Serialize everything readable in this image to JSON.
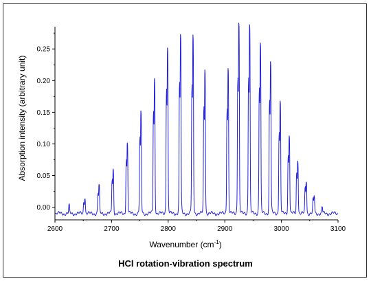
{
  "chart_data": {
    "type": "line",
    "title": "HCl rotation-vibration spectrum",
    "xlabel": "Wavenumber (cm",
    "xlabel_sup": "-1",
    "xlabel_close": ")",
    "ylabel": "Absorption intensity (arbitrary unit)",
    "xlim": [
      2600,
      3100
    ],
    "ylim": [
      -0.02,
      0.285
    ],
    "x_ticks": [
      2600,
      2700,
      2800,
      2900,
      3000,
      3100
    ],
    "x_tick_labels": [
      "2600",
      "2700",
      "2800",
      "2900",
      "3000",
      "3100"
    ],
    "y_ticks": [
      0.0,
      0.05,
      0.1,
      0.15,
      0.2,
      0.25
    ],
    "y_tick_labels": [
      "0.00",
      "0.05",
      "0.10",
      "0.15",
      "0.20",
      "0.25"
    ],
    "grid": false,
    "line_color": "#2222dd",
    "baseline": -0.01,
    "peaks_main": [
      {
        "x": 2625,
        "y": 0.002
      },
      {
        "x": 2653,
        "y": 0.015
      },
      {
        "x": 2678,
        "y": 0.032
      },
      {
        "x": 2703,
        "y": 0.057
      },
      {
        "x": 2728,
        "y": 0.097
      },
      {
        "x": 2752,
        "y": 0.143
      },
      {
        "x": 2776,
        "y": 0.195
      },
      {
        "x": 2799,
        "y": 0.242
      },
      {
        "x": 2822,
        "y": 0.262
      },
      {
        "x": 2844,
        "y": 0.26
      },
      {
        "x": 2865,
        "y": 0.211
      },
      {
        "x": 2906,
        "y": 0.211
      },
      {
        "x": 2925,
        "y": 0.28
      },
      {
        "x": 2944,
        "y": 0.277
      },
      {
        "x": 2963,
        "y": 0.249
      },
      {
        "x": 2981,
        "y": 0.222
      },
      {
        "x": 2998,
        "y": 0.16
      },
      {
        "x": 3014,
        "y": 0.11
      },
      {
        "x": 3029,
        "y": 0.073
      },
      {
        "x": 3044,
        "y": 0.04
      },
      {
        "x": 3058,
        "y": 0.016
      },
      {
        "x": 3072,
        "y": 0.0
      }
    ],
    "peaks_isotope": [
      {
        "x": 2651,
        "y": 0.008
      },
      {
        "x": 2676,
        "y": 0.02
      },
      {
        "x": 2701,
        "y": 0.04
      },
      {
        "x": 2726,
        "y": 0.07
      },
      {
        "x": 2750,
        "y": 0.1
      },
      {
        "x": 2774,
        "y": 0.14
      },
      {
        "x": 2797,
        "y": 0.175
      },
      {
        "x": 2820,
        "y": 0.18
      },
      {
        "x": 2842,
        "y": 0.175
      },
      {
        "x": 2863,
        "y": 0.145
      },
      {
        "x": 2904,
        "y": 0.145
      },
      {
        "x": 2923,
        "y": 0.19
      },
      {
        "x": 2942,
        "y": 0.19
      },
      {
        "x": 2961,
        "y": 0.175
      },
      {
        "x": 2979,
        "y": 0.155
      },
      {
        "x": 2996,
        "y": 0.11
      },
      {
        "x": 3012,
        "y": 0.075
      },
      {
        "x": 3027,
        "y": 0.05
      },
      {
        "x": 3042,
        "y": 0.028
      },
      {
        "x": 3056,
        "y": 0.01
      }
    ]
  }
}
